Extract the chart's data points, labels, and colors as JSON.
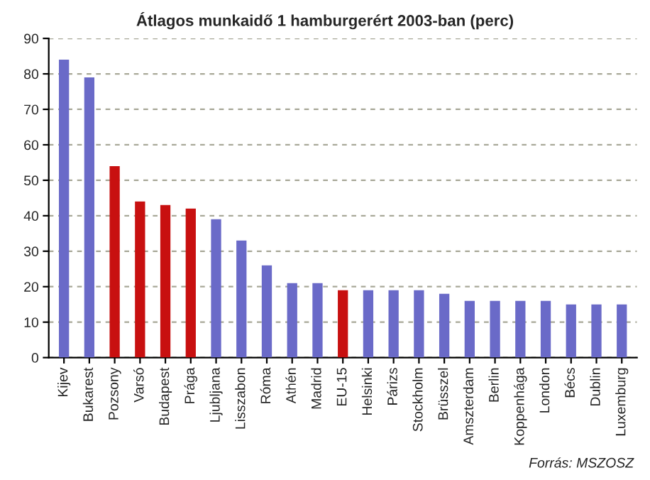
{
  "chart_data": {
    "type": "bar",
    "title": "Átlagos munkaidő 1 hamburgerért 2003-ban (perc)",
    "categories": [
      "Kijev",
      "Bukarest",
      "Pozsony",
      "Varsó",
      "Budapest",
      "Prága",
      "Ljubljana",
      "Lisszabon",
      "Róma",
      "Athén",
      "Madrid",
      "EU-15",
      "Helsinki",
      "Párizs",
      "Stockholm",
      "Brüsszel",
      "Amszterdam",
      "Berlin",
      "Koppenhága",
      "London",
      "Bécs",
      "Dublin",
      "Luxemburg"
    ],
    "values": [
      84,
      79,
      54,
      44,
      43,
      42,
      39,
      33,
      26,
      21,
      21,
      19,
      19,
      19,
      19,
      18,
      16,
      16,
      16,
      16,
      15,
      15,
      15
    ],
    "colors": [
      "#6a6ac8",
      "#6a6ac8",
      "#c81010",
      "#c81010",
      "#c81010",
      "#c81010",
      "#6a6ac8",
      "#6a6ac8",
      "#6a6ac8",
      "#6a6ac8",
      "#6a6ac8",
      "#c81010",
      "#6a6ac8",
      "#6a6ac8",
      "#6a6ac8",
      "#6a6ac8",
      "#6a6ac8",
      "#6a6ac8",
      "#6a6ac8",
      "#6a6ac8",
      "#6a6ac8",
      "#6a6ac8",
      "#6a6ac8"
    ],
    "ylim": [
      0,
      90
    ],
    "yticks": [
      0,
      10,
      20,
      30,
      40,
      50,
      60,
      70,
      80,
      90
    ],
    "grid": "y",
    "annotations": [
      "Forrás: MSZOSZ"
    ]
  }
}
